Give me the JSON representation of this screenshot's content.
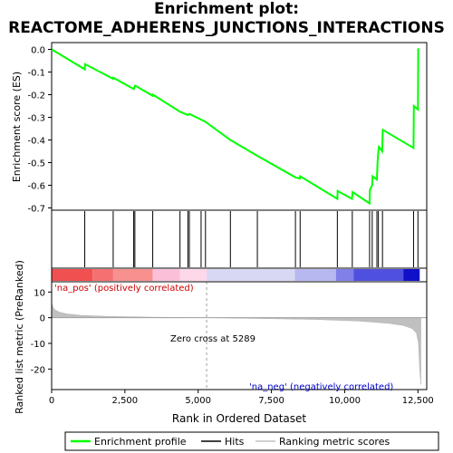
{
  "title_line1": "Enrichment plot:",
  "title_line2": "REACTOME_ADHERENS_JUNCTIONS_INTERACTIONS",
  "colors": {
    "profile": "#00ff00",
    "hits": "#000000",
    "metric_fill": "#c0c0c0",
    "zero_line": "#a0a0a0",
    "pos_label": "#cc0000",
    "neg_label": "#0000cc"
  },
  "chart_data": {
    "type": "line",
    "xlabel": "Rank in Ordered Dataset",
    "xlim": [
      0,
      12800
    ],
    "x_ticks": [
      0,
      2500,
      5000,
      7500,
      10000,
      12500
    ],
    "x_tick_labels": [
      "0",
      "2,500",
      "5,000",
      "7,500",
      "10,000",
      "12,500"
    ],
    "es_panel": {
      "ylabel": "Enrichment score (ES)",
      "ylim": [
        -0.71,
        0.03
      ],
      "y_ticks": [
        0.0,
        -0.1,
        -0.2,
        -0.3,
        -0.4,
        -0.5,
        -0.6,
        -0.7
      ],
      "y_tick_labels": [
        "0.0",
        "-0.1",
        "-0.2",
        "-0.3",
        "-0.4",
        "-0.5",
        "-0.6",
        "-0.7"
      ],
      "profile": {
        "x": [
          0,
          1130,
          1140,
          2100,
          2110,
          2800,
          2820,
          2850,
          3450,
          3460,
          4380,
          4650,
          4700,
          5100,
          5250,
          6100,
          7020,
          8320,
          8470,
          8480,
          9750,
          9760,
          10250,
          10270,
          10850,
          10860,
          10940,
          10950,
          11100,
          11120,
          11150,
          11170,
          11280,
          11300,
          12350,
          12360,
          12500,
          12510
        ],
        "y": [
          0.0,
          -0.088,
          -0.065,
          -0.13,
          -0.125,
          -0.175,
          -0.168,
          -0.16,
          -0.205,
          -0.2,
          -0.275,
          -0.29,
          -0.285,
          -0.31,
          -0.32,
          -0.4,
          -0.47,
          -0.565,
          -0.57,
          -0.56,
          -0.66,
          -0.625,
          -0.66,
          -0.63,
          -0.68,
          -0.62,
          -0.6,
          -0.56,
          -0.575,
          -0.5,
          -0.45,
          -0.43,
          -0.45,
          -0.355,
          -0.435,
          -0.25,
          -0.265,
          0.005
        ]
      }
    },
    "hits": [
      1130,
      2100,
      2800,
      2840,
      3450,
      4380,
      4650,
      4700,
      5100,
      5250,
      6100,
      7020,
      8320,
      8480,
      9750,
      10260,
      10850,
      10940,
      11100,
      11150,
      11290,
      12350,
      12500
    ],
    "metric_panel": {
      "ylabel": "Ranked list metric (PreRanked)",
      "ylim": [
        -28,
        14
      ],
      "y_ticks": [
        10,
        0,
        -10,
        -20
      ],
      "y_tick_labels": [
        "10",
        "0",
        "-10",
        "-20"
      ],
      "zero_cross_rank": 5289,
      "zero_cross_text": "Zero cross at 5289",
      "pos_text": "'na_pos' (positively correlated)",
      "neg_text": "'na_neg' (negatively correlated)",
      "curve": {
        "x": [
          0,
          30,
          100,
          250,
          500,
          1000,
          2000,
          3500,
          5289,
          7000,
          9000,
          10500,
          11500,
          12000,
          12300,
          12450,
          12520,
          12560,
          12600
        ],
        "y": [
          6,
          4.5,
          3.2,
          2.2,
          1.5,
          0.9,
          0.5,
          0.2,
          0,
          -0.3,
          -0.7,
          -1.3,
          -2.2,
          -3.0,
          -4.2,
          -6.0,
          -10,
          -20,
          -26
        ]
      }
    },
    "color_band": {
      "segments": [
        {
          "from": 0,
          "to": 1400,
          "color": "#f05050"
        },
        {
          "from": 1400,
          "to": 2100,
          "color": "#f57070"
        },
        {
          "from": 2100,
          "to": 3450,
          "color": "#f89090"
        },
        {
          "from": 3450,
          "to": 4380,
          "color": "#fbc0d8"
        },
        {
          "from": 4380,
          "to": 5289,
          "color": "#fcd8e8"
        },
        {
          "from": 5289,
          "to": 8300,
          "color": "#d8d8f5"
        },
        {
          "from": 8300,
          "to": 9700,
          "color": "#b8b8f0"
        },
        {
          "from": 9700,
          "to": 10300,
          "color": "#8080e8"
        },
        {
          "from": 10300,
          "to": 12000,
          "color": "#5050e0"
        },
        {
          "from": 12000,
          "to": 12560,
          "color": "#1010c8"
        }
      ]
    },
    "legend": {
      "placement": "bottom",
      "items": [
        {
          "label": "Enrichment profile",
          "kind": "line",
          "color": "#00ff00"
        },
        {
          "label": "Hits",
          "kind": "line",
          "color": "#000000"
        },
        {
          "label": "Ranking metric scores",
          "kind": "line",
          "color": "#c0c0c0"
        }
      ]
    }
  }
}
